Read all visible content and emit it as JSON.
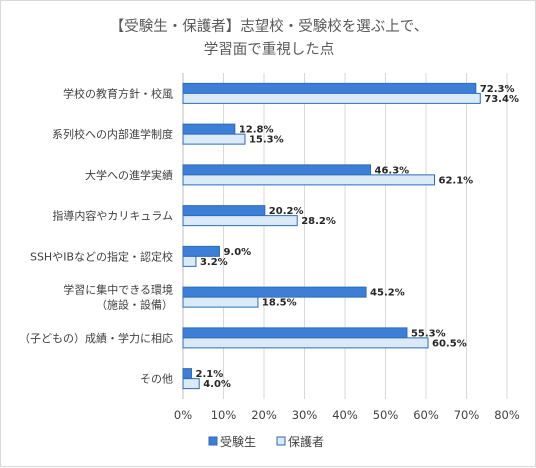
{
  "chart_data": {
    "type": "bar",
    "orientation": "horizontal",
    "title": "【受験生・保護者】志望校・受験校を選ぶ上で、",
    "subtitle": "学習面で重視した点",
    "categories": [
      [
        "学校の教育方針・校風"
      ],
      [
        "系列校への内部進学制度"
      ],
      [
        "大学への進学実績"
      ],
      [
        "指導内容やカリキュラム"
      ],
      [
        "SSHやIBなどの指定・認定校"
      ],
      [
        "学習に集中できる環境",
        "（施設・設備）"
      ],
      [
        "（子どもの）成績・学力に相応"
      ],
      [
        "その他"
      ]
    ],
    "series": [
      {
        "name": "受験生",
        "color": "#3d7fd6",
        "values": [
          72.3,
          12.8,
          46.3,
          20.2,
          9.0,
          45.2,
          55.3,
          2.1
        ],
        "value_labels": [
          "72.3%",
          "12.8%",
          "46.3%",
          "20.2%",
          "9.0%",
          "45.2%",
          "55.3%",
          "2.1%"
        ]
      },
      {
        "name": "保護者",
        "color": "#dbeaf7",
        "values": [
          73.4,
          15.3,
          62.1,
          28.2,
          3.2,
          18.5,
          60.5,
          4.0
        ],
        "value_labels": [
          "73.4%",
          "15.3%",
          "62.1%",
          "28.2%",
          "3.2%",
          "18.5%",
          "60.5%",
          "4.0%"
        ]
      }
    ],
    "xlim": [
      0,
      80
    ],
    "xticks": [
      0,
      10,
      20,
      30,
      40,
      50,
      60,
      70,
      80
    ],
    "xtick_labels": [
      "0%",
      "10%",
      "20%",
      "30%",
      "40%",
      "50%",
      "60%",
      "70%",
      "80%"
    ],
    "grid": true,
    "legend_position": "bottom"
  },
  "colors": {
    "border": "#2e6bb8",
    "grid": "#d9d9d9",
    "axis": "#bfbfbf"
  }
}
